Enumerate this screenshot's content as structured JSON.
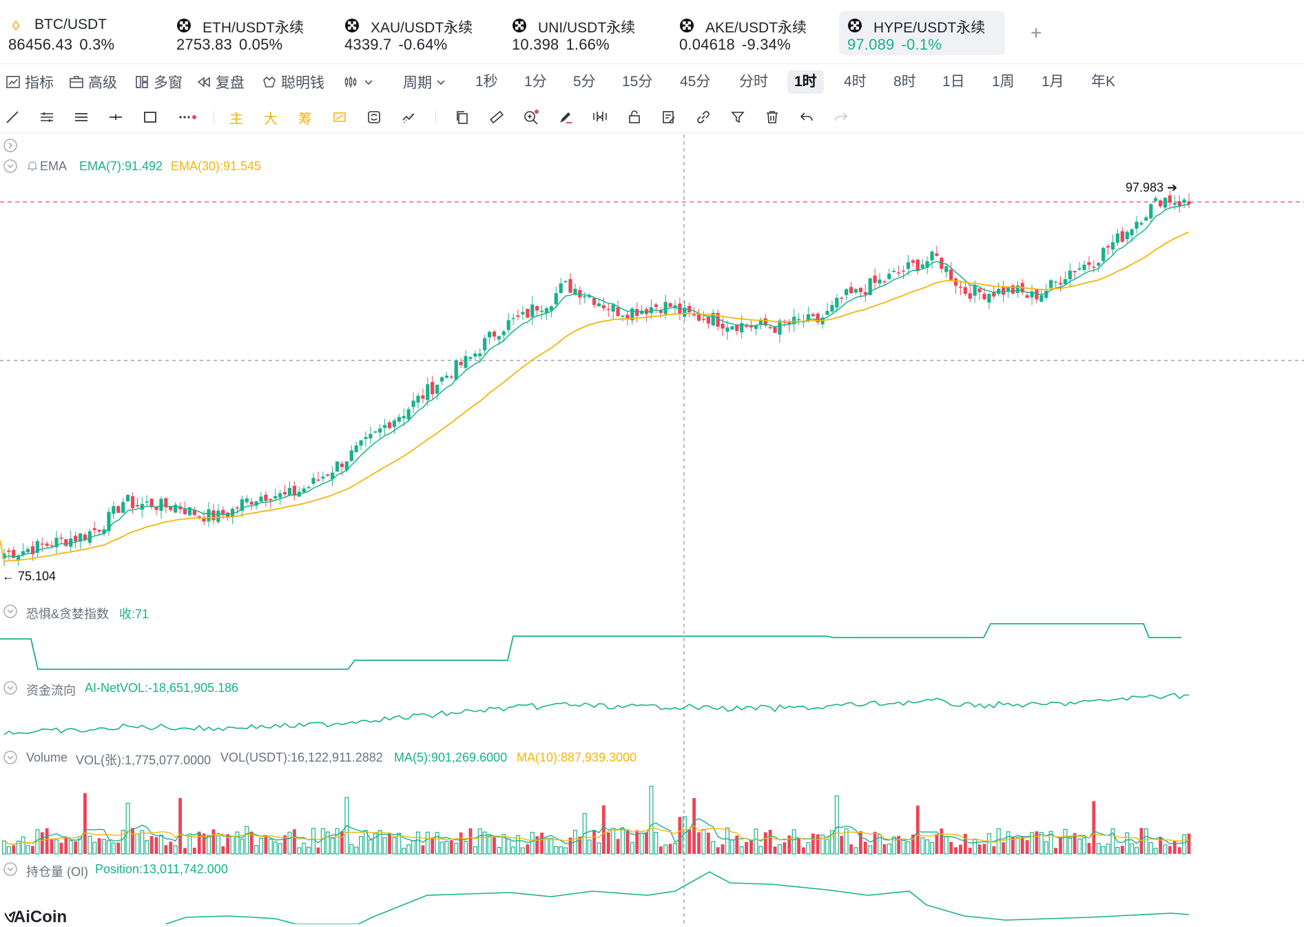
{
  "tickers": [
    {
      "symbol": "BTC/USDT",
      "price": "86456.43",
      "change": "0.3%",
      "icon": "bitcoin-icon"
    },
    {
      "symbol": "ETH/USDT永续",
      "price": "2753.83",
      "change": "0.05%",
      "icon": "okx-icon"
    },
    {
      "symbol": "XAU/USDT永续",
      "price": "4339.7",
      "change": "-0.64%",
      "icon": "okx-icon"
    },
    {
      "symbol": "UNI/USDT永续",
      "price": "10.398",
      "change": "1.66%",
      "icon": "okx-icon"
    },
    {
      "symbol": "AKE/USDT永续",
      "price": "0.04618",
      "change": "-9.34%",
      "icon": "okx-icon"
    },
    {
      "symbol": "HYPE/USDT永续",
      "price": "97.089",
      "change": "-0.1%",
      "icon": "okx-icon",
      "active": true
    }
  ],
  "add_tab": "+",
  "menu": {
    "indicators": "指标",
    "advanced": "高级",
    "multi_window": "多窗",
    "replay": "复盘",
    "smart_money": "聪明钱",
    "period": "周期"
  },
  "periods": [
    "1秒",
    "1分",
    "5分",
    "15分",
    "45分",
    "分时",
    "1时",
    "4时",
    "8时",
    "1日",
    "1周",
    "1月",
    "年K"
  ],
  "active_period": "1时",
  "drawing_tools": {
    "main": "主",
    "big": "大",
    "chip": "筹"
  },
  "ema": {
    "label": "EMA",
    "ema7": "EMA(7):91.492",
    "ema30": "EMA(30):91.545"
  },
  "price_high_label": "97.983",
  "price_low_label": "75.104",
  "fear_greed": {
    "label": "恐惧&贪婪指数",
    "value": "收:71"
  },
  "money_flow": {
    "label": "资金流向",
    "value": "AI-NetVOL:-18,651,905.186"
  },
  "volume": {
    "label": "Volume",
    "vol_contracts": "VOL(张):1,775,077.0000",
    "vol_usdt": "VOL(USDT):16,122,911.2882",
    "ma5": "MA(5):901,269.6000",
    "ma10": "MA(10):887,939.3000"
  },
  "open_interest": {
    "label": "持仓量 (OI)",
    "value": "Position:13,011,742.000"
  },
  "logo_text": "AiCoin",
  "colors": {
    "up": "#16b28b",
    "down": "#ef4356",
    "ema30": "#f5b50b",
    "accent": "#16b28b"
  },
  "chart_data": {
    "type": "line",
    "price_range": [
      75.104,
      97.983
    ],
    "close_series": [
      76.1,
      76.2,
      76.4,
      76.6,
      76.8,
      77.0,
      77.2,
      77.6,
      78.3,
      79.3,
      79.0,
      79.1,
      78.9,
      79.0,
      78.6,
      78.4,
      78.3,
      78.6,
      79.2,
      79.5,
      79.7,
      79.5,
      79.8,
      80.2,
      80.8,
      81.4,
      82.0,
      82.6,
      83.3,
      84.1,
      84.6,
      85.3,
      86.0,
      86.7,
      87.3,
      87.8,
      88.7,
      89.5,
      90.0,
      90.3,
      91.0,
      91.3,
      92.2,
      92.0,
      91.6,
      91.1,
      90.7,
      90.7,
      90.8,
      91.0,
      91.0,
      90.5,
      90.3,
      90.3,
      90.0,
      89.9,
      89.8,
      89.8,
      89.7,
      89.9,
      90.1,
      90.0,
      90.6,
      91.5,
      91.7,
      92.2,
      92.5,
      92.9,
      93.3,
      93.6,
      93.9,
      93.0,
      91.9,
      91.8,
      91.8,
      91.9,
      91.9,
      91.5,
      91.8,
      92.4,
      93.1,
      93.4,
      93.8,
      94.6,
      95.2,
      96.1,
      96.8,
      97.5,
      97.3,
      97.1
    ]
  }
}
